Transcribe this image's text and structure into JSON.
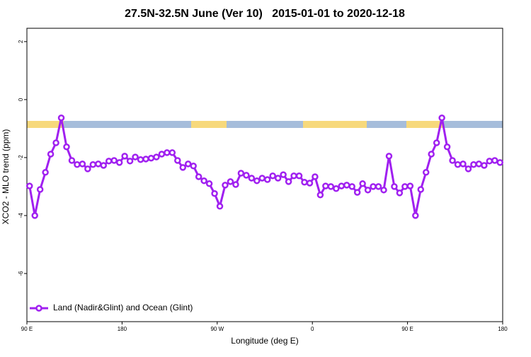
{
  "chart_data": {
    "type": "line",
    "title": "27.5N-32.5N June (Ver 10)   2015-01-01 to 2020-12-18",
    "x_label": "Longitude (deg E)",
    "y_label": "XCO2 - MLO trend (ppm)",
    "xlim": [
      90,
      540
    ],
    "ylim": [
      -7.66,
      2.46
    ],
    "xticks": [
      {
        "value": 90,
        "label": "90 E"
      },
      {
        "value": 180,
        "label": "180"
      },
      {
        "value": 270,
        "label": "90 W"
      },
      {
        "value": 360,
        "label": "0"
      },
      {
        "value": 450,
        "label": "90 E"
      },
      {
        "value": 540,
        "label": "180"
      }
    ],
    "yticks": [
      -6,
      -4,
      -2,
      0,
      2
    ],
    "legend": "bottomleft",
    "x": [
      92.5,
      97.5,
      102.5,
      107.5,
      112.5,
      117.5,
      122.5,
      127.5,
      132.5,
      137.5,
      142.5,
      147.5,
      152.5,
      157.5,
      162.5,
      167.5,
      172.5,
      177.5,
      182.5,
      187.5,
      192.5,
      197.5,
      202.5,
      207.5,
      212.5,
      217.5,
      222.5,
      227.5,
      232.5,
      237.5,
      242.5,
      247.5,
      252.5,
      257.5,
      262.5,
      267.5,
      272.5,
      277.5,
      282.5,
      287.5,
      292.5,
      297.5,
      302.5,
      307.5,
      312.5,
      317.5,
      322.5,
      327.5,
      332.5,
      337.5,
      342.5,
      347.5,
      352.5,
      357.5,
      362.5,
      367.5,
      372.5,
      377.5,
      382.5,
      387.5,
      392.5,
      397.5,
      402.5,
      407.5,
      412.5,
      417.5,
      422.5,
      427.5,
      432.5,
      437.5,
      442.5,
      447.5,
      452.5,
      457.5,
      462.5,
      467.5,
      472.5,
      477.5,
      482.5,
      487.5,
      492.5,
      497.5,
      502.5,
      507.5,
      512.5,
      517.5,
      522.5,
      527.5,
      532.5,
      537.5
    ],
    "series": [
      {
        "name": "Land (Nadir&Glint) and Ocean (Glint)",
        "color": "#a020f0",
        "values": [
          -2.98,
          -4.0,
          -3.1,
          -2.51,
          -1.88,
          -1.49,
          -0.63,
          -1.63,
          -2.1,
          -2.24,
          -2.22,
          -2.39,
          -2.24,
          -2.22,
          -2.27,
          -2.12,
          -2.1,
          -2.17,
          -1.95,
          -2.12,
          -1.98,
          -2.07,
          -2.05,
          -2.02,
          -1.98,
          -1.88,
          -1.83,
          -1.83,
          -2.1,
          -2.34,
          -2.22,
          -2.29,
          -2.66,
          -2.8,
          -2.9,
          -3.24,
          -3.68,
          -2.95,
          -2.83,
          -2.93,
          -2.54,
          -2.61,
          -2.71,
          -2.8,
          -2.71,
          -2.76,
          -2.63,
          -2.71,
          -2.59,
          -2.83,
          -2.63,
          -2.63,
          -2.85,
          -2.88,
          -2.66,
          -3.29,
          -2.98,
          -3.0,
          -3.07,
          -2.98,
          -2.95,
          -3.0,
          -3.2,
          -2.9,
          -3.12,
          -3.0,
          -3.0,
          -3.12,
          -1.95,
          -3.0,
          -3.22,
          -3.0,
          -2.98,
          -4.0,
          -3.1,
          -2.51,
          -1.88,
          -1.49,
          -0.63,
          -1.63,
          -2.1,
          -2.24,
          -2.22,
          -2.39,
          -2.24,
          -2.22,
          -2.27,
          -2.12,
          -2.1,
          -2.17
        ]
      }
    ]
  }
}
